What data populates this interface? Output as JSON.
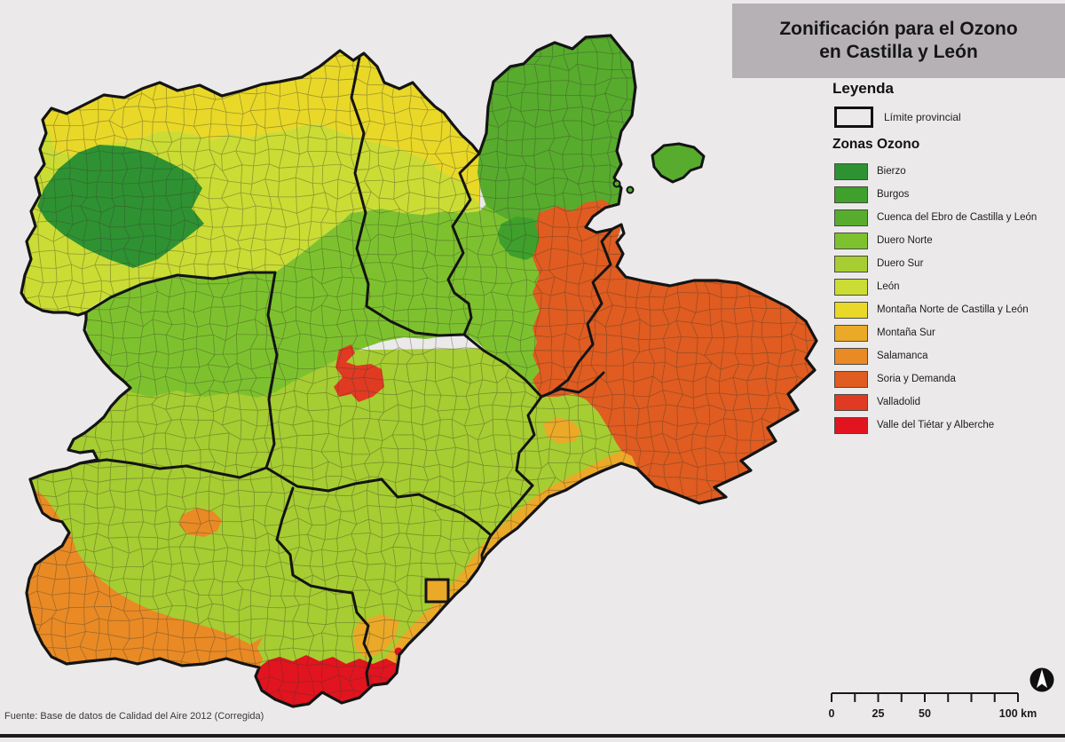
{
  "title": {
    "line1": "Zonificación para el Ozono",
    "line2": "en Castilla y León"
  },
  "legend": {
    "heading": "Leyenda",
    "province_limit_label": "Límite provincial",
    "zones_heading": "Zonas Ozono",
    "zones": [
      {
        "id": "bierzo",
        "label": "Bierzo",
        "color": "#2E9232"
      },
      {
        "id": "burgos",
        "label": "Burgos",
        "color": "#3FA02B"
      },
      {
        "id": "cuenca-ebro",
        "label": "Cuenca del Ebro de Castilla y León",
        "color": "#57AC2D"
      },
      {
        "id": "duero-norte",
        "label": "Duero Norte",
        "color": "#7DC22E"
      },
      {
        "id": "duero-sur",
        "label": "Duero Sur",
        "color": "#A6CD31"
      },
      {
        "id": "leon",
        "label": "León",
        "color": "#CBDC34"
      },
      {
        "id": "montana-norte",
        "label": "Montaña Norte de Castilla y León",
        "color": "#E9D828"
      },
      {
        "id": "montana-sur",
        "label": "Montaña Sur",
        "color": "#EBA928"
      },
      {
        "id": "salamanca",
        "label": "Salamanca",
        "color": "#E98A25"
      },
      {
        "id": "soria-demanda",
        "label": "Soria y Demanda",
        "color": "#E05C20"
      },
      {
        "id": "valladolid",
        "label": "Valladolid",
        "color": "#E13A22"
      },
      {
        "id": "valle-tietar",
        "label": "Valle del Tiétar y Alberche",
        "color": "#E2141F"
      }
    ]
  },
  "map": {
    "background": "#EBE9EA",
    "province_border_color": "#141414",
    "municipal_line_color": "#3C3C2D"
  },
  "scalebar": {
    "total_km": 100,
    "minor_step_km": 12.5,
    "labels": [
      {
        "km": 0,
        "text": "0"
      },
      {
        "km": 25,
        "text": "25"
      },
      {
        "km": 50,
        "text": "50"
      },
      {
        "km": 100,
        "text": "100 km"
      }
    ]
  },
  "source_note": "Fuente: Base de datos de Calidad del Aire 2012 (Corregida)"
}
